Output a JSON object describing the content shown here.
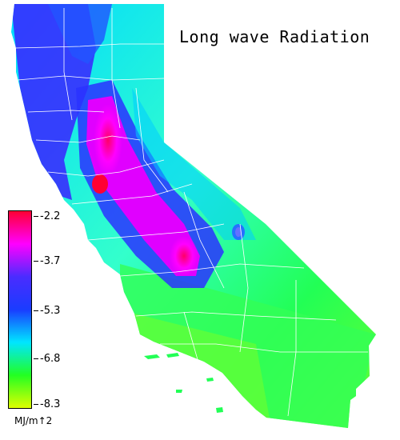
{
  "title": "Long wave Radiation",
  "legend": {
    "units": "MJ/m↑2",
    "ticks": [
      "-2.2",
      "-3.7",
      "-5.3",
      "-6.8",
      "-8.3"
    ],
    "min": -8.3,
    "max": -2.2,
    "colors": [
      "#ff0033",
      "#ff00ff",
      "#4a2cff",
      "#1a3cff",
      "#00e6ff",
      "#22ff22",
      "#ddff00"
    ]
  },
  "map": {
    "region": "California",
    "boundary_color": "#ffffff"
  }
}
